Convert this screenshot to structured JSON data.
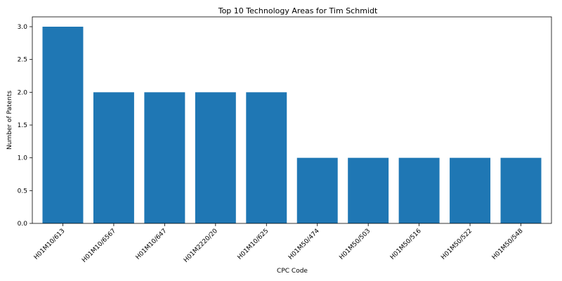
{
  "chart_data": {
    "type": "bar",
    "title": "Top 10 Technology Areas for Tim Schmidt",
    "xlabel": "CPC Code",
    "ylabel": "Number of Patents",
    "categories": [
      "H01M10/613",
      "H01M10/6567",
      "H01M10/647",
      "H01M2220/20",
      "H01M10/625",
      "H01M50/474",
      "H01M50/503",
      "H01M50/516",
      "H01M50/522",
      "H01M50/548"
    ],
    "values": [
      3,
      2,
      2,
      2,
      2,
      1,
      1,
      1,
      1,
      1
    ],
    "yticks": [
      "0.0",
      "0.5",
      "1.0",
      "1.5",
      "2.0",
      "2.5",
      "3.0"
    ],
    "ylim": [
      0,
      3.15
    ],
    "grid": false,
    "bar_color": "#1f77b4"
  }
}
